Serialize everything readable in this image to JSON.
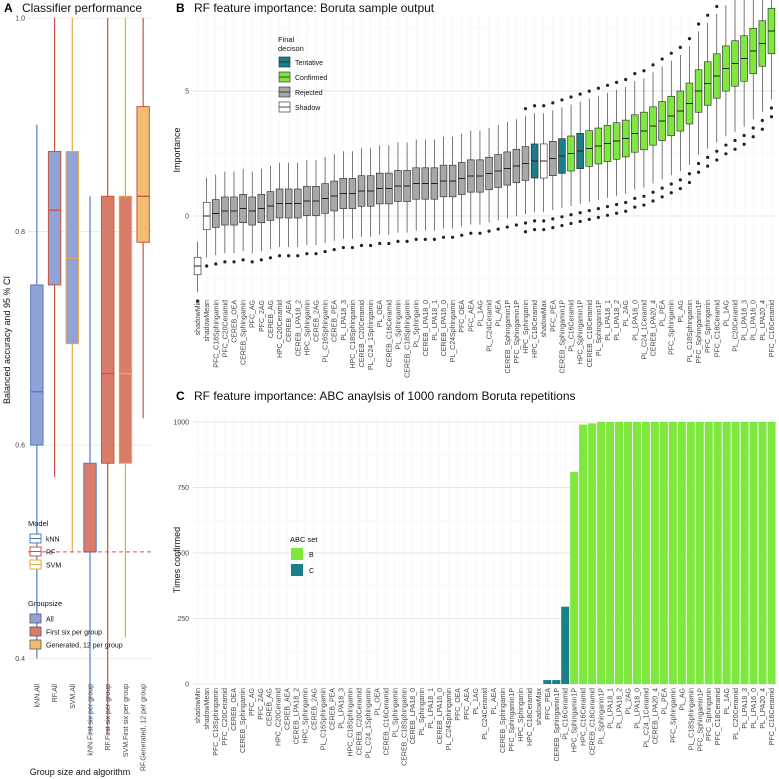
{
  "panel_a": {
    "letter": "A",
    "title": "Classifier performance",
    "ylabel": "Balanced accuracy and 95 % CI",
    "xlabel": "Group size and algorithm",
    "ylim": [
      0.38,
      1.0
    ],
    "yticks": [
      0.4,
      0.6,
      0.8,
      1.0
    ],
    "ytick_labels": [
      "0.4",
      "0.6",
      "0.8",
      "1.0"
    ],
    "reference_line": 0.5,
    "model_legend_title": "Model",
    "groupsize_legend_title": "Groupsize",
    "model_colors": {
      "kNN": "#4f7fc4",
      "RF": "#c9543f",
      "SVM": "#e3a94a"
    },
    "model_legend": [
      {
        "label": "kNN",
        "color": "#4f7fc4"
      },
      {
        "label": "RF",
        "color": "#c9543f"
      },
      {
        "label": "SVM",
        "color": "#e3a94a"
      }
    ],
    "groupsize_legend": [
      {
        "label": "All",
        "fill": "#8fa3d9"
      },
      {
        "label": "First six per group",
        "fill": "#d97d6a"
      },
      {
        "label": "Generated, 12 per group",
        "fill": "#f0bd73"
      }
    ],
    "chart_data": {
      "type": "box",
      "categories": [
        "kNN.All",
        "RF.All",
        "SVM.All",
        "kNN.First six per group",
        "RF.First six per group",
        "SVM.First six per group",
        "RF.Generated, 12 per group"
      ],
      "boxes": [
        {
          "model": "kNN",
          "group": "All",
          "min": 0.4,
          "q1": 0.6,
          "median": 0.65,
          "q3": 0.75,
          "max": 0.9
        },
        {
          "model": "RF",
          "group": "All",
          "min": 0.57,
          "q1": 0.75,
          "median": 0.82,
          "q3": 0.875,
          "max": 1.0
        },
        {
          "model": "SVM",
          "group": "All",
          "min": 0.5,
          "q1": 0.695,
          "median": 0.775,
          "q3": 0.875,
          "max": 1.0
        },
        {
          "model": "kNN",
          "group": "First six per group",
          "min": 0.33,
          "q1": 0.5,
          "median": 0.5,
          "q3": 0.583,
          "max": 0.833
        },
        {
          "model": "RF",
          "group": "First six per group",
          "min": 0.33,
          "q1": 0.583,
          "median": 0.667,
          "q3": 0.833,
          "max": 1.0
        },
        {
          "model": "SVM",
          "group": "First six per group",
          "min": 0.42,
          "q1": 0.583,
          "median": 0.667,
          "q3": 0.833,
          "max": 1.0
        },
        {
          "model": "RF",
          "group": "Generated, 12 per group",
          "min": 0.625,
          "q1": 0.79,
          "median": 0.833,
          "q3": 0.917,
          "max": 1.0
        }
      ]
    }
  },
  "panel_b": {
    "letter": "B",
    "title": "RF feature importance: Boruta sample output",
    "ylabel": "Importance",
    "ylim": [
      -3.2,
      8.0
    ],
    "yticks": [
      0,
      5
    ],
    "ytick_labels": [
      "0",
      "5"
    ],
    "legend_title": "Final\ndecison",
    "legend": [
      {
        "label": "Tentative",
        "fill": "#1b7f8a"
      },
      {
        "label": "Confirmed",
        "fill": "#7ee83f"
      },
      {
        "label": "Rejected",
        "fill": "#a8a8a8"
      },
      {
        "label": "Shadow",
        "fill": "#ffffff"
      }
    ],
    "decision_colors": {
      "Tentative": "#1b7f8a",
      "Confirmed": "#7ee83f",
      "Rejected": "#a8a8a8",
      "Shadow": "#ffffff"
    },
    "chart_data": {
      "type": "box",
      "features": [
        {
          "name": "shadowMin",
          "decision": "Shadow",
          "median": -2.0
        },
        {
          "name": "shadowMean",
          "decision": "Shadow",
          "median": 0.0
        },
        {
          "name": "PFC_C18Sphingamin",
          "decision": "Rejected",
          "median": 0.1
        },
        {
          "name": "PFC_C20Ceramid",
          "decision": "Rejected",
          "median": 0.2
        },
        {
          "name": "CEREB_OEA",
          "decision": "Rejected",
          "median": 0.2
        },
        {
          "name": "CEREB_Sphingamin",
          "decision": "Rejected",
          "median": 0.3
        },
        {
          "name": "PFC_AG",
          "decision": "Rejected",
          "median": 0.2
        },
        {
          "name": "PFC_2AG",
          "decision": "Rejected",
          "median": 0.3
        },
        {
          "name": "CEREB_AG",
          "decision": "Rejected",
          "median": 0.4
        },
        {
          "name": "HPC_C20Ceramid",
          "decision": "Rejected",
          "median": 0.5
        },
        {
          "name": "CEREB_AEA",
          "decision": "Rejected",
          "median": 0.5
        },
        {
          "name": "CEREB_LPA18_2",
          "decision": "Rejected",
          "median": 0.5
        },
        {
          "name": "HPC_Sphingamin",
          "decision": "Rejected",
          "median": 0.6
        },
        {
          "name": "CEREB_2AG",
          "decision": "Rejected",
          "median": 0.6
        },
        {
          "name": "PL_C16Sphingamin",
          "decision": "Rejected",
          "median": 0.7
        },
        {
          "name": "CEREB_PEA",
          "decision": "Rejected",
          "median": 0.8
        },
        {
          "name": "PL_LPA18_3",
          "decision": "Rejected",
          "median": 0.9
        },
        {
          "name": "HPC_C18Sphingamin",
          "decision": "Rejected",
          "median": 0.9
        },
        {
          "name": "CEREB_C20Ceramid",
          "decision": "Rejected",
          "median": 1.0
        },
        {
          "name": "PL_C24_1Sphingamin",
          "decision": "Rejected",
          "median": 1.0
        },
        {
          "name": "PL_OEA",
          "decision": "Rejected",
          "median": 1.1
        },
        {
          "name": "CEREB_C16Ceramid",
          "decision": "Rejected",
          "median": 1.1
        },
        {
          "name": "PL_Sphingamin",
          "decision": "Rejected",
          "median": 1.2
        },
        {
          "name": "CEREB_C18Sphingamin",
          "decision": "Rejected",
          "median": 1.2
        },
        {
          "name": "PL_Sphinganin",
          "decision": "Rejected",
          "median": 1.3
        },
        {
          "name": "CEREB_LPA18_0",
          "decision": "Rejected",
          "median": 1.3
        },
        {
          "name": "PL_LPA18_1",
          "decision": "Rejected",
          "median": 1.3
        },
        {
          "name": "CEREB_LPA16_0",
          "decision": "Rejected",
          "median": 1.4
        },
        {
          "name": "PL_C24Sphingamin",
          "decision": "Rejected",
          "median": 1.4
        },
        {
          "name": "PFC_OEA",
          "decision": "Rejected",
          "median": 1.5
        },
        {
          "name": "PFC_AEA",
          "decision": "Rejected",
          "median": 1.6
        },
        {
          "name": "PL_1AG",
          "decision": "Rejected",
          "median": 1.6
        },
        {
          "name": "PL_C24Ceramid",
          "decision": "Rejected",
          "median": 1.7
        },
        {
          "name": "PL_AEA",
          "decision": "Rejected",
          "median": 1.8
        },
        {
          "name": "CEREB_Sphingamin1P",
          "decision": "Rejected",
          "median": 1.9
        },
        {
          "name": "PFC_Sphingamin1P",
          "decision": "Rejected",
          "median": 2.0
        },
        {
          "name": "HPC_Sphinganin",
          "decision": "Rejected",
          "median": 2.1
        },
        {
          "name": "HPC_C18Ceramid",
          "decision": "Tentative",
          "median": 2.2
        },
        {
          "name": "shadowMax",
          "decision": "Shadow",
          "median": 2.2
        },
        {
          "name": "PFC_PEA",
          "decision": "Rejected",
          "median": 2.3
        },
        {
          "name": "CEREB_Sphingamin1P",
          "decision": "Tentative",
          "median": 2.4
        },
        {
          "name": "PL_C16Ceramid",
          "decision": "Confirmed",
          "median": 2.5
        },
        {
          "name": "HPC_Sphingamin1P",
          "decision": "Tentative",
          "median": 2.6
        },
        {
          "name": "CEREB_C18Ceramid",
          "decision": "Confirmed",
          "median": 2.7
        },
        {
          "name": "PL_Sphinganin1P",
          "decision": "Confirmed",
          "median": 2.8
        },
        {
          "name": "PL_LPA18_1",
          "decision": "Confirmed",
          "median": 2.9
        },
        {
          "name": "PL_LPA18_2",
          "decision": "Confirmed",
          "median": 3.0
        },
        {
          "name": "PL_2AG",
          "decision": "Confirmed",
          "median": 3.1
        },
        {
          "name": "PL_LPA18_0",
          "decision": "Confirmed",
          "median": 3.3
        },
        {
          "name": "PL_C24_1Ceramid",
          "decision": "Confirmed",
          "median": 3.4
        },
        {
          "name": "CEREB_LPA20_4",
          "decision": "Confirmed",
          "median": 3.6
        },
        {
          "name": "PL_PEA",
          "decision": "Confirmed",
          "median": 3.8
        },
        {
          "name": "PFC_Sphingamin",
          "decision": "Confirmed",
          "median": 4.0
        },
        {
          "name": "PL_AG",
          "decision": "Confirmed",
          "median": 4.2
        },
        {
          "name": "PL_C18Sphingamin",
          "decision": "Confirmed",
          "median": 4.5
        },
        {
          "name": "PFC_Sphingamin1P",
          "decision": "Confirmed",
          "median": 5.0
        },
        {
          "name": "PFC_Sphinganin",
          "decision": "Confirmed",
          "median": 5.3
        },
        {
          "name": "PFC_C18Ceramid",
          "decision": "Confirmed",
          "median": 5.6
        },
        {
          "name": "PL_1AG",
          "decision": "Confirmed",
          "median": 5.9
        },
        {
          "name": "PL_C20Ceramid",
          "decision": "Confirmed",
          "median": 6.1
        },
        {
          "name": "PL_LPA18_3",
          "decision": "Confirmed",
          "median": 6.3
        },
        {
          "name": "PL_LPA16_0",
          "decision": "Confirmed",
          "median": 6.6
        },
        {
          "name": "PL_LPA20_4",
          "decision": "Confirmed",
          "median": 6.9
        },
        {
          "name": "PFC_C16Ceramid",
          "decision": "Confirmed",
          "median": 7.4
        }
      ]
    }
  },
  "panel_c": {
    "letter": "C",
    "title": "RF feature importance: ABC anaylsis of 1000 random Boruta repetitions",
    "ylabel": "Times confirmed",
    "ylim": [
      0,
      1000
    ],
    "yticks": [
      0,
      250,
      500,
      750,
      1000
    ],
    "ytick_labels": [
      "0",
      "250",
      "500",
      "750",
      "1000"
    ],
    "legend_title": "ABC set",
    "legend": [
      {
        "label": "B",
        "fill": "#7ee83f"
      },
      {
        "label": "C",
        "fill": "#1b7f8a"
      }
    ],
    "set_colors": {
      "B": "#7ee83f",
      "C": "#1b7f8a"
    },
    "chart_data": {
      "type": "bar",
      "categories": [
        "shadowMin",
        "shadowMean",
        "PFC_C18Sphingamin",
        "PFC_C20Ceramid",
        "CEREB_OEA",
        "CEREB_Sphingamin",
        "PFC_AG",
        "PFC_2AG",
        "CEREB_AG",
        "HPC_C20Ceramid",
        "CEREB_AEA",
        "CEREB_LPA18_2",
        "HPC_Sphingamin",
        "CEREB_2AG",
        "PL_C16Sphingamin",
        "CEREB_PEA",
        "PL_LPA18_3",
        "HPC_C18Sphingamin",
        "CEREB_C20Ceramid",
        "PL_C24_1Sphingamin",
        "PL_OEA",
        "CEREB_C16Ceramid",
        "PL_Sphingamin",
        "CEREB_C18Sphingamin",
        "CEREB_LPA18_0",
        "PL_Sphinganin",
        "PL_LPA18_1",
        "CEREB_LPA16_0",
        "PL_C24Sphingamin",
        "PFC_OEA",
        "PFC_AEA",
        "PL_1AG",
        "PL_C24Ceramid",
        "PL_AEA",
        "CEREB_Sphingamin",
        "PFC_Sphingamin1P",
        "HPC_Sphinganin",
        "HPC_C18Ceramid",
        "shadowMax",
        "PFC_PEA",
        "CEREB_Sphingamin1P",
        "PL_C16Ceramid",
        "HPC_Sphingamin1P",
        "HPC_C16Ceramid",
        "CEREB_C18Ceramid",
        "PL_Sphinganin1P",
        "PL_LPA18_1",
        "PL_LPA18_2",
        "PL_2AG",
        "PL_LPA18_0",
        "PL_C24_1Ceramid",
        "CEREB_LPA20_4",
        "PL_PEA",
        "PFC_Sphingamin",
        "PL_AG",
        "PL_C18Sphingamin",
        "PFC_Sphingamin1P",
        "PFC_Sphinganin",
        "PFC_C18Ceramid",
        "PL_1AG",
        "PL_C20Ceramid",
        "PL_LPA18_3",
        "PL_LPA16_0",
        "PL_LPA20_4",
        "PFC_C16Ceramid"
      ],
      "values": [
        0,
        0,
        0,
        0,
        0,
        0,
        0,
        0,
        0,
        0,
        0,
        0,
        0,
        0,
        0,
        0,
        0,
        0,
        0,
        0,
        0,
        0,
        0,
        0,
        0,
        0,
        0,
        0,
        0,
        0,
        0,
        0,
        0,
        0,
        0,
        0,
        0,
        0,
        0,
        15,
        15,
        295,
        810,
        990,
        995,
        1000,
        1000,
        1000,
        1000,
        1000,
        1000,
        1000,
        1000,
        1000,
        1000,
        1000,
        1000,
        1000,
        1000,
        1000,
        1000,
        1000,
        1000,
        1000,
        1000
      ],
      "sets": [
        "C",
        "C",
        "C",
        "C",
        "C",
        "C",
        "C",
        "C",
        "C",
        "C",
        "C",
        "C",
        "C",
        "C",
        "C",
        "C",
        "C",
        "C",
        "C",
        "C",
        "C",
        "C",
        "C",
        "C",
        "C",
        "C",
        "C",
        "C",
        "C",
        "C",
        "C",
        "C",
        "C",
        "C",
        "C",
        "C",
        "C",
        "C",
        "C",
        "C",
        "C",
        "C",
        "B",
        "B",
        "B",
        "B",
        "B",
        "B",
        "B",
        "B",
        "B",
        "B",
        "B",
        "B",
        "B",
        "B",
        "B",
        "B",
        "B",
        "B",
        "B",
        "B",
        "B",
        "B",
        "B"
      ]
    }
  }
}
